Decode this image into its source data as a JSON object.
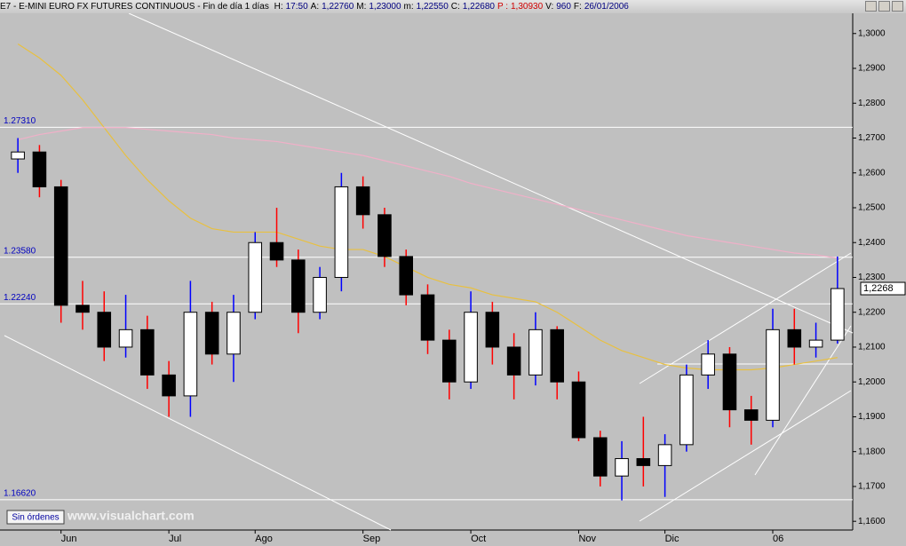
{
  "header": {
    "name": "E7 - E-MINI EURO FX FUTURES CONTINUOUS - Fin de día 1 días",
    "fields": [
      [
        "H:",
        "17:50"
      ],
      [
        "A:",
        "1,22760"
      ],
      [
        "M:",
        "1,23000"
      ],
      [
        "m:",
        "1,22550"
      ],
      [
        "C:",
        "1,22680"
      ],
      [
        "P :",
        "1,30930"
      ],
      [
        "V:",
        "960"
      ],
      [
        "F:",
        "26/01/2006"
      ]
    ]
  },
  "footer": {
    "button": "Sin órdenes",
    "watermark": "www.visualchart.com"
  },
  "chart_data": {
    "type": "candlestick",
    "categories": [
      null,
      null,
      "Jun",
      null,
      null,
      null,
      null,
      "Jul",
      null,
      null,
      null,
      "Ago",
      null,
      null,
      null,
      null,
      "Sep",
      null,
      null,
      null,
      null,
      "Oct",
      null,
      null,
      null,
      null,
      "Nov",
      null,
      null,
      null,
      "Dic",
      null,
      null,
      null,
      null,
      "06",
      null,
      null,
      null
    ],
    "ohlc": [
      [
        1.264,
        1.27,
        1.26,
        1.266
      ],
      [
        1.266,
        1.268,
        1.253,
        1.256
      ],
      [
        1.256,
        1.258,
        1.217,
        1.222
      ],
      [
        1.222,
        1.229,
        1.215,
        1.22
      ],
      [
        1.22,
        1.226,
        1.206,
        1.21
      ],
      [
        1.21,
        1.225,
        1.207,
        1.215
      ],
      [
        1.215,
        1.219,
        1.198,
        1.202
      ],
      [
        1.202,
        1.206,
        1.19,
        1.196
      ],
      [
        1.196,
        1.229,
        1.19,
        1.22
      ],
      [
        1.22,
        1.223,
        1.205,
        1.208
      ],
      [
        1.208,
        1.225,
        1.2,
        1.22
      ],
      [
        1.22,
        1.243,
        1.218,
        1.24
      ],
      [
        1.24,
        1.25,
        1.233,
        1.235
      ],
      [
        1.235,
        1.238,
        1.214,
        1.22
      ],
      [
        1.22,
        1.233,
        1.218,
        1.23
      ],
      [
        1.23,
        1.26,
        1.226,
        1.256
      ],
      [
        1.256,
        1.259,
        1.244,
        1.248
      ],
      [
        1.248,
        1.25,
        1.233,
        1.236
      ],
      [
        1.236,
        1.238,
        1.222,
        1.225
      ],
      [
        1.225,
        1.228,
        1.208,
        1.212
      ],
      [
        1.212,
        1.215,
        1.195,
        1.2
      ],
      [
        1.2,
        1.226,
        1.198,
        1.22
      ],
      [
        1.22,
        1.223,
        1.205,
        1.21
      ],
      [
        1.21,
        1.214,
        1.195,
        1.202
      ],
      [
        1.202,
        1.22,
        1.199,
        1.215
      ],
      [
        1.215,
        1.216,
        1.195,
        1.2
      ],
      [
        1.2,
        1.203,
        1.183,
        1.184
      ],
      [
        1.184,
        1.186,
        1.17,
        1.173
      ],
      [
        1.173,
        1.183,
        1.166,
        1.178
      ],
      [
        1.178,
        1.19,
        1.17,
        1.176
      ],
      [
        1.176,
        1.185,
        1.167,
        1.182
      ],
      [
        1.182,
        1.205,
        1.18,
        1.202
      ],
      [
        1.202,
        1.212,
        1.198,
        1.208
      ],
      [
        1.208,
        1.21,
        1.187,
        1.192
      ],
      [
        1.192,
        1.196,
        1.182,
        1.189
      ],
      [
        1.189,
        1.221,
        1.187,
        1.215
      ],
      [
        1.215,
        1.221,
        1.205,
        1.21
      ],
      [
        1.21,
        1.217,
        1.207,
        1.212
      ],
      [
        1.212,
        1.236,
        1.211,
        1.2268
      ]
    ],
    "up_color": "#ffffff",
    "down_color": "#000000",
    "up_wick_color": "#0000ff",
    "down_wick_color": "#ff0000",
    "overlays": [
      {
        "color": "#e8c040",
        "values": [
          1.297,
          1.293,
          1.288,
          1.281,
          1.273,
          1.265,
          1.258,
          1.252,
          1.247,
          1.244,
          1.243,
          1.243,
          1.243,
          1.241,
          1.239,
          1.238,
          1.238,
          1.236,
          1.233,
          1.23,
          1.228,
          1.227,
          1.225,
          1.224,
          1.223,
          1.22,
          1.216,
          1.212,
          1.209,
          1.207,
          1.205,
          1.204,
          1.2035,
          1.2035,
          1.2035,
          1.204,
          1.205,
          1.206,
          1.207
        ]
      },
      {
        "color": "#f0b0c8",
        "values": [
          1.2695,
          1.271,
          1.272,
          1.273,
          1.273,
          1.273,
          1.2725,
          1.272,
          1.2715,
          1.271,
          1.27,
          1.2695,
          1.269,
          1.268,
          1.267,
          1.266,
          1.265,
          1.2635,
          1.262,
          1.2605,
          1.259,
          1.257,
          1.2555,
          1.254,
          1.2525,
          1.251,
          1.2495,
          1.248,
          1.2465,
          1.245,
          1.2435,
          1.242,
          1.241,
          1.24,
          1.239,
          1.238,
          1.237,
          1.2365,
          1.2355
        ]
      }
    ],
    "levels": [
      {
        "value": 1.2731,
        "label": "1.27310"
      },
      {
        "value": 1.2358,
        "label": "1.23580"
      },
      {
        "value": 1.2224,
        "label": "1.22240"
      },
      {
        "value": 1.1662,
        "label": "1.16620"
      }
    ],
    "last_price": {
      "value": 1.2268,
      "label": "1,2268"
    },
    "ylim": [
      1.1575,
      1.3058
    ],
    "yticks": [
      {
        "value": 1.16,
        "label": "1,1600"
      },
      {
        "value": 1.17,
        "label": "1,1700"
      },
      {
        "value": 1.18,
        "label": "1,1800"
      },
      {
        "value": 1.19,
        "label": "1,1900"
      },
      {
        "value": 1.2,
        "label": "1,2000"
      },
      {
        "value": 1.21,
        "label": "1,2100"
      },
      {
        "value": 1.22,
        "label": "1,2200"
      },
      {
        "value": 1.23,
        "label": "1,2300"
      },
      {
        "value": 1.24,
        "label": "1,2400"
      },
      {
        "value": 1.25,
        "label": "1,2500"
      },
      {
        "value": 1.26,
        "label": "1,2600"
      },
      {
        "value": 1.27,
        "label": "1,2700"
      },
      {
        "value": 1.28,
        "label": "1,2800"
      },
      {
        "value": 1.29,
        "label": "1,2900"
      },
      {
        "value": 1.3,
        "label": "1,3000"
      }
    ]
  }
}
